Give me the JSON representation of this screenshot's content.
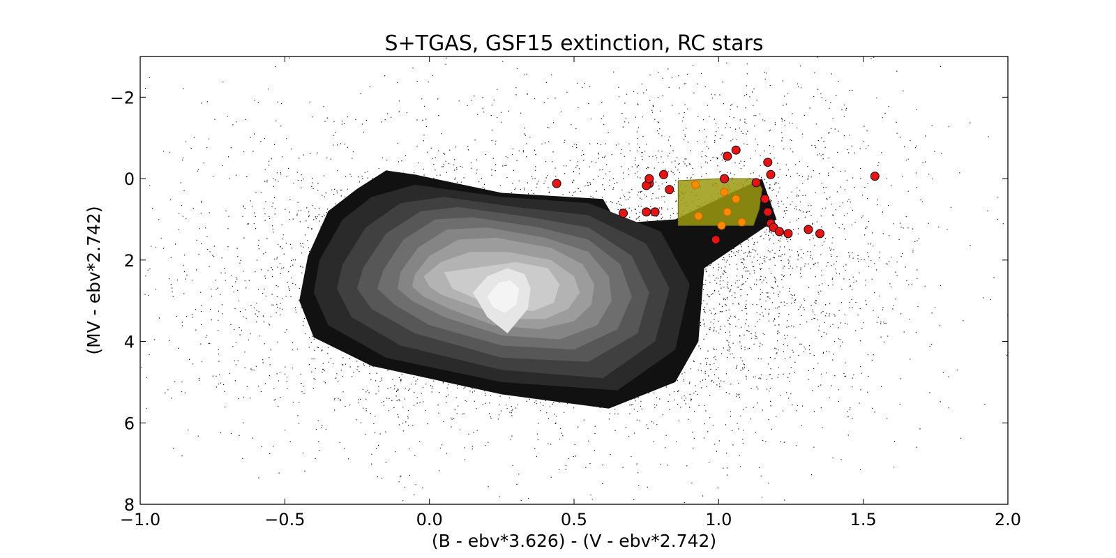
{
  "chart_data": {
    "type": "scatter",
    "title": "S+TGAS, GSF15 extinction, RC stars",
    "xlabel": "(B - ebv*3.626) - (V - ebv*2.742)",
    "ylabel": "(MV - ebv*2.742)",
    "xlim": [
      -1.0,
      2.0
    ],
    "ylim": [
      8,
      -3
    ],
    "y_inverted": true,
    "x_ticks": [
      -1.0,
      -0.5,
      0.0,
      0.5,
      1.0,
      1.5,
      2.0
    ],
    "x_tick_labels": [
      "−1.0",
      "−0.5",
      "0.0",
      "0.5",
      "1.0",
      "1.5",
      "2.0"
    ],
    "y_ticks": [
      -2,
      0,
      2,
      4,
      6,
      8
    ],
    "y_tick_labels": [
      "−2",
      "0",
      "2",
      "4",
      "6",
      "8"
    ],
    "grid": false,
    "background_scatter": {
      "color": "#000000",
      "approx_count": 6000,
      "components": [
        {
          "cx": 0.15,
          "cy": 2.6,
          "sx": 0.5,
          "sy": 1.9,
          "weight": 0.6
        },
        {
          "cx": 1.05,
          "cy": 1.8,
          "sx": 0.3,
          "sy": 2.2,
          "weight": 0.3
        },
        {
          "cx": 0.5,
          "cy": 2.0,
          "sx": 0.9,
          "sy": 2.6,
          "weight": 0.1
        }
      ]
    },
    "density_contours": {
      "colors": [
        "#111111",
        "#2a2a2a",
        "#404040",
        "#575757",
        "#6e6e6e",
        "#858585",
        "#9c9c9c",
        "#b3b3b3",
        "#cbcbcb",
        "#e6e6e6",
        "#f4f4f4"
      ],
      "levels": [
        {
          "points": [
            [
              -0.42,
              1.9
            ],
            [
              -0.35,
              0.8
            ],
            [
              -0.25,
              0.25
            ],
            [
              -0.15,
              -0.2
            ],
            [
              -0.05,
              -0.1
            ],
            [
              0.25,
              0.35
            ],
            [
              0.6,
              0.5
            ],
            [
              0.65,
              1.1
            ],
            [
              0.85,
              1.0
            ],
            [
              1.15,
              0.0
            ],
            [
              1.2,
              1.0
            ],
            [
              0.95,
              2.2
            ],
            [
              0.93,
              4.0
            ],
            [
              0.85,
              5.0
            ],
            [
              0.62,
              5.65
            ],
            [
              0.25,
              5.3
            ],
            [
              -0.2,
              4.6
            ],
            [
              -0.4,
              3.9
            ],
            [
              -0.45,
              3.0
            ]
          ]
        },
        {
          "points": [
            [
              -0.38,
              2.0
            ],
            [
              -0.3,
              1.0
            ],
            [
              -0.2,
              0.45
            ],
            [
              -0.05,
              0.15
            ],
            [
              0.25,
              0.45
            ],
            [
              0.55,
              0.6
            ],
            [
              0.8,
              1.3
            ],
            [
              0.9,
              2.6
            ],
            [
              0.85,
              4.2
            ],
            [
              0.65,
              5.2
            ],
            [
              0.25,
              5.0
            ],
            [
              -0.15,
              4.4
            ],
            [
              -0.35,
              3.6
            ],
            [
              -0.4,
              2.8
            ]
          ]
        },
        {
          "points": [
            [
              -0.3,
              2.1
            ],
            [
              -0.22,
              1.2
            ],
            [
              -0.1,
              0.6
            ],
            [
              0.05,
              0.45
            ],
            [
              0.3,
              0.7
            ],
            [
              0.55,
              0.9
            ],
            [
              0.75,
              1.6
            ],
            [
              0.83,
              2.7
            ],
            [
              0.78,
              4.0
            ],
            [
              0.6,
              4.9
            ],
            [
              0.25,
              4.7
            ],
            [
              -0.1,
              4.1
            ],
            [
              -0.27,
              3.4
            ],
            [
              -0.32,
              2.7
            ]
          ]
        },
        {
          "points": [
            [
              -0.23,
              2.2
            ],
            [
              -0.15,
              1.35
            ],
            [
              -0.03,
              0.8
            ],
            [
              0.1,
              0.7
            ],
            [
              0.35,
              0.95
            ],
            [
              0.55,
              1.2
            ],
            [
              0.7,
              1.9
            ],
            [
              0.76,
              2.8
            ],
            [
              0.72,
              3.8
            ],
            [
              0.55,
              4.5
            ],
            [
              0.25,
              4.4
            ],
            [
              -0.05,
              3.8
            ],
            [
              -0.2,
              3.2
            ],
            [
              -0.25,
              2.7
            ]
          ]
        },
        {
          "points": [
            [
              -0.16,
              2.25
            ],
            [
              -0.09,
              1.5
            ],
            [
              0.02,
              1.0
            ],
            [
              0.15,
              0.95
            ],
            [
              0.38,
              1.2
            ],
            [
              0.55,
              1.5
            ],
            [
              0.66,
              2.1
            ],
            [
              0.7,
              2.9
            ],
            [
              0.65,
              3.7
            ],
            [
              0.5,
              4.2
            ],
            [
              0.25,
              4.1
            ],
            [
              0.0,
              3.6
            ],
            [
              -0.12,
              3.1
            ],
            [
              -0.18,
              2.7
            ]
          ]
        },
        {
          "points": [
            [
              -0.1,
              2.3
            ],
            [
              -0.04,
              1.7
            ],
            [
              0.06,
              1.25
            ],
            [
              0.2,
              1.2
            ],
            [
              0.4,
              1.45
            ],
            [
              0.55,
              1.8
            ],
            [
              0.62,
              2.4
            ],
            [
              0.63,
              3.0
            ],
            [
              0.58,
              3.6
            ],
            [
              0.45,
              3.95
            ],
            [
              0.25,
              3.85
            ],
            [
              0.05,
              3.4
            ],
            [
              -0.06,
              3.0
            ],
            [
              -0.11,
              2.7
            ]
          ]
        },
        {
          "points": [
            [
              -0.05,
              2.35
            ],
            [
              0.0,
              1.9
            ],
            [
              0.1,
              1.5
            ],
            [
              0.23,
              1.45
            ],
            [
              0.42,
              1.7
            ],
            [
              0.53,
              2.1
            ],
            [
              0.57,
              2.6
            ],
            [
              0.56,
              3.1
            ],
            [
              0.5,
              3.5
            ],
            [
              0.38,
              3.7
            ],
            [
              0.22,
              3.6
            ],
            [
              0.07,
              3.2
            ],
            [
              -0.02,
              2.9
            ],
            [
              -0.06,
              2.65
            ]
          ]
        },
        {
          "points": [
            [
              -0.02,
              2.4
            ],
            [
              0.04,
              2.05
            ],
            [
              0.14,
              1.8
            ],
            [
              0.27,
              1.8
            ],
            [
              0.42,
              2.0
            ],
            [
              0.5,
              2.4
            ],
            [
              0.52,
              2.8
            ],
            [
              0.48,
              3.2
            ],
            [
              0.4,
              3.45
            ],
            [
              0.28,
              3.45
            ],
            [
              0.14,
              3.1
            ],
            [
              0.04,
              2.85
            ],
            [
              0.0,
              2.65
            ]
          ]
        },
        {
          "points": [
            [
              0.05,
              2.3
            ],
            [
              0.15,
              2.2
            ],
            [
              0.3,
              2.05
            ],
            [
              0.41,
              2.2
            ],
            [
              0.45,
              2.6
            ],
            [
              0.43,
              3.05
            ],
            [
              0.36,
              3.25
            ],
            [
              0.25,
              3.2
            ],
            [
              0.16,
              2.95
            ],
            [
              0.08,
              2.7
            ]
          ]
        },
        {
          "points": [
            [
              0.15,
              2.8
            ],
            [
              0.2,
              2.4
            ],
            [
              0.27,
              2.2
            ],
            [
              0.33,
              2.35
            ],
            [
              0.35,
              2.7
            ],
            [
              0.34,
              3.2
            ],
            [
              0.27,
              3.8
            ],
            [
              0.2,
              3.4
            ]
          ]
        },
        {
          "points": [
            [
              0.2,
              2.9
            ],
            [
              0.24,
              2.55
            ],
            [
              0.28,
              2.5
            ],
            [
              0.31,
              2.7
            ],
            [
              0.3,
              3.1
            ],
            [
              0.26,
              3.3
            ],
            [
              0.22,
              3.15
            ]
          ]
        }
      ]
    },
    "selection_region": {
      "fill": "#9a9a10",
      "opacity": 0.85,
      "points": [
        [
          0.86,
          0.05
        ],
        [
          1.0,
          0.0
        ],
        [
          1.13,
          0.0
        ],
        [
          1.15,
          0.25
        ],
        [
          1.14,
          0.75
        ],
        [
          1.12,
          1.15
        ],
        [
          0.86,
          1.15
        ]
      ]
    },
    "series": [
      {
        "color": "#ee1111",
        "edge": "#000000",
        "radius": 6,
        "x": [
          0.44,
          0.67,
          0.75,
          0.78,
          0.76,
          0.75,
          0.76,
          0.81,
          0.83,
          1.03,
          1.06,
          1.02,
          1.17,
          1.18,
          1.13,
          1.16,
          1.17,
          1.18,
          1.19,
          1.21,
          1.24,
          1.31,
          1.35,
          1.54,
          0.99
        ],
        "y": [
          0.12,
          0.85,
          0.82,
          0.82,
          0.12,
          0.17,
          0.0,
          -0.1,
          0.27,
          -0.55,
          -0.7,
          0.0,
          -0.4,
          -0.1,
          0.1,
          0.5,
          0.82,
          1.1,
          1.2,
          1.3,
          1.35,
          1.25,
          1.35,
          -0.06,
          1.5
        ]
      },
      {
        "color": "#ff8a00",
        "edge": "#cc6a00",
        "radius": 5.5,
        "x": [
          0.92,
          0.93,
          1.02,
          1.03,
          1.06,
          1.08,
          1.01
        ],
        "y": [
          0.15,
          0.92,
          0.33,
          0.82,
          0.5,
          1.07,
          1.15
        ]
      }
    ]
  }
}
